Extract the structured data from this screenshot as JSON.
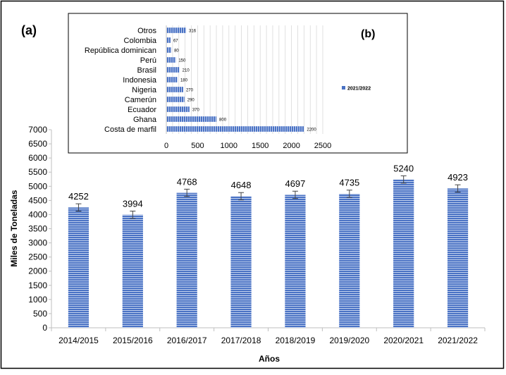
{
  "colors": {
    "bar": "#4a72c4",
    "bar_stripe": "#c3d2ee",
    "axis": "#bfbfbf",
    "grid": "#d9d9d9",
    "text": "#000000",
    "frame": "#000000"
  },
  "chart_data": [
    {
      "type": "bar",
      "panel_label": "(a)",
      "title": "",
      "xlabel": "Años",
      "ylabel": "Miles de Toneladas",
      "categories": [
        "2014/2015",
        "2015/2016",
        "2016/2017",
        "2017/2018",
        "2018/2019",
        "2019/2020",
        "2020/2021",
        "2021/2022"
      ],
      "values": [
        4252,
        3994,
        4768,
        4648,
        4697,
        4735,
        5240,
        4923
      ],
      "data_labels": [
        "4252",
        "3994",
        "4768",
        "4648",
        "4697",
        "4735",
        "5240",
        "4923"
      ],
      "error_bars": [
        130,
        130,
        130,
        130,
        130,
        130,
        130,
        130
      ],
      "ylim": [
        0,
        7000
      ],
      "yticks": [
        "0",
        "500",
        "1000",
        "1500",
        "2000",
        "2500",
        "3000",
        "3500",
        "4000",
        "4500",
        "5000",
        "5500",
        "6000",
        "6500",
        "7000"
      ],
      "ytick_values": [
        0,
        500,
        1000,
        1500,
        2000,
        2500,
        3000,
        3500,
        4000,
        4500,
        5000,
        5500,
        6000,
        6500,
        7000
      ],
      "grid": false
    },
    {
      "type": "bar",
      "orientation": "horizontal",
      "panel_label": "(b)",
      "title": "",
      "categories": [
        "Costa de marfil",
        "Ghana",
        "Ecuador",
        "Camerún",
        "Nigeria",
        "Indonesia",
        "Brasil",
        "Perú",
        "República dominican",
        "Colombia",
        "Otros"
      ],
      "values": [
        2200,
        800,
        370,
        290,
        270,
        180,
        210,
        150,
        80,
        67,
        316
      ],
      "data_labels": [
        "2200",
        "800",
        "370",
        "290",
        "270",
        "180",
        "210",
        "150",
        "80",
        "67",
        "316"
      ],
      "series": [
        {
          "name": "2021/2022"
        }
      ],
      "legend_position": "right",
      "xlim": [
        0,
        2500
      ],
      "xticks": [
        "0",
        "500",
        "1000",
        "1500",
        "2000",
        "2500"
      ],
      "xtick_values": [
        0,
        500,
        1000,
        1500,
        2000,
        2500
      ],
      "grid": true
    }
  ]
}
